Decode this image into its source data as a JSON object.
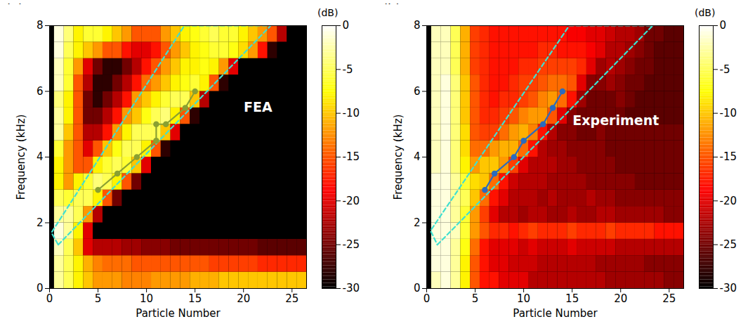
{
  "chart_data": [
    {
      "type": "heatmap",
      "panel": "(a)",
      "x_label": "Particle Number",
      "y_label": "Frequency (kHz)",
      "xlim": [
        0,
        26.5
      ],
      "xticks": [
        0,
        5,
        10,
        15,
        20,
        25
      ],
      "ylim": [
        0,
        8
      ],
      "yticks": [
        0,
        2,
        4,
        6,
        8
      ],
      "annotations": [
        {
          "text": "FEA",
          "x": 21.5,
          "y": 5.5
        }
      ],
      "particle_numbers": [
        1,
        2,
        3,
        4,
        5,
        6,
        7,
        8,
        9,
        10,
        11,
        12,
        13,
        14,
        15,
        16,
        17,
        18,
        19,
        20,
        21,
        22,
        23,
        24,
        25,
        26
      ],
      "frequency_bins": [
        0,
        0.5,
        1,
        1.5,
        2,
        2.5,
        3,
        3.5,
        4,
        4.5,
        5,
        5.5,
        6,
        6.5,
        7,
        7.5,
        8
      ],
      "cells": [
        [
          -3,
          -5,
          -8,
          -10,
          -12,
          -12,
          -12,
          -13,
          -13,
          -13,
          -12,
          -12,
          -12,
          -12,
          -11,
          -11,
          -11,
          -10,
          -10,
          -10,
          -10,
          -10,
          -10,
          -10,
          -10,
          -10
        ],
        [
          -3,
          -5,
          -8,
          -11,
          -13,
          -14,
          -14,
          -14,
          -15,
          -15,
          -15,
          -15,
          -15,
          -15,
          -15,
          -15,
          -16,
          -16,
          -16,
          -16,
          -16,
          -17,
          -17,
          -17,
          -17,
          -17
        ],
        [
          -2,
          -5,
          -10,
          -20,
          -22,
          -22,
          -22,
          -23,
          -23,
          -24,
          -24,
          -24,
          -25,
          -25,
          -25,
          -25,
          -25,
          -25,
          -25,
          -25,
          -25,
          -26,
          -26,
          -26,
          -26,
          -26
        ],
        [
          -1,
          -3,
          -8,
          -20,
          -30,
          -30,
          -30,
          -30,
          -30,
          -30,
          -30,
          -30,
          -30,
          -30,
          -30,
          -30,
          -30,
          -30,
          -30,
          -30,
          -30,
          -30,
          -30,
          -30,
          -30,
          -30
        ],
        [
          -3,
          -3,
          -5,
          -12,
          -22,
          -30,
          -30,
          -30,
          -30,
          -30,
          -30,
          -30,
          -30,
          -30,
          -30,
          -30,
          -30,
          -30,
          -30,
          -30,
          -30,
          -30,
          -30,
          -30,
          -30,
          -30
        ],
        [
          -5,
          -6,
          -5,
          -5,
          -8,
          -15,
          -25,
          -30,
          -30,
          -30,
          -30,
          -30,
          -30,
          -30,
          -30,
          -30,
          -30,
          -30,
          -30,
          -30,
          -30,
          -30,
          -30,
          -30,
          -30,
          -30
        ],
        [
          -8,
          -12,
          -8,
          -6,
          -4,
          -5,
          -8,
          -15,
          -25,
          -30,
          -30,
          -30,
          -30,
          -30,
          -30,
          -30,
          -30,
          -30,
          -30,
          -30,
          -30,
          -30,
          -30,
          -30,
          -30,
          -30
        ],
        [
          -8,
          -12,
          -15,
          -15,
          -8,
          -6,
          -5,
          -6,
          -10,
          -20,
          -30,
          -30,
          -30,
          -30,
          -30,
          -30,
          -30,
          -30,
          -30,
          -30,
          -30,
          -30,
          -30,
          -30,
          -30,
          -30
        ],
        [
          -6,
          -12,
          -15,
          -20,
          -15,
          -10,
          -7,
          -5,
          -5,
          -8,
          -15,
          -28,
          -30,
          -30,
          -30,
          -30,
          -30,
          -30,
          -30,
          -30,
          -30,
          -30,
          -30,
          -30,
          -30,
          -30
        ],
        [
          -3,
          -10,
          -15,
          -22,
          -22,
          -18,
          -12,
          -8,
          -5,
          -5,
          -5,
          -10,
          -20,
          -30,
          -30,
          -30,
          -30,
          -30,
          -30,
          -30,
          -30,
          -30,
          -30,
          -30,
          -30,
          -30
        ],
        [
          -3,
          -8,
          -15,
          -25,
          -25,
          -22,
          -18,
          -12,
          -10,
          -7,
          -5,
          -4,
          -8,
          -15,
          -28,
          -30,
          -30,
          -30,
          -30,
          -30,
          -30,
          -30,
          -30,
          -30,
          -30,
          -30
        ],
        [
          -4,
          -8,
          -15,
          -25,
          -28,
          -25,
          -22,
          -18,
          -12,
          -10,
          -8,
          -6,
          -5,
          -5,
          -10,
          -22,
          -30,
          -30,
          -30,
          -30,
          -30,
          -30,
          -30,
          -30,
          -30,
          -30
        ],
        [
          -2,
          -6,
          -15,
          -22,
          -28,
          -28,
          -25,
          -22,
          -18,
          -14,
          -12,
          -10,
          -8,
          -7,
          -6,
          -8,
          -15,
          -28,
          -30,
          -30,
          -30,
          -30,
          -30,
          -30,
          -30,
          -30
        ],
        [
          -2,
          -6,
          -12,
          -20,
          -25,
          -28,
          -28,
          -25,
          -22,
          -18,
          -15,
          -12,
          -10,
          -8,
          -8,
          -7,
          -8,
          -12,
          -20,
          -30,
          -30,
          -30,
          -30,
          -30,
          -30,
          -30
        ],
        [
          -1,
          -5,
          -8,
          -10,
          -12,
          -15,
          -15,
          -18,
          -20,
          -20,
          -18,
          -15,
          -12,
          -10,
          -8,
          -7,
          -6,
          -6,
          -7,
          -9,
          -12,
          -18,
          -28,
          -30,
          -30,
          -30
        ],
        [
          -1,
          -4,
          -8,
          -6,
          -6,
          -8,
          -10,
          -12,
          -15,
          -15,
          -15,
          -12,
          -10,
          -8,
          -7,
          -6,
          -5,
          -6,
          -6,
          -8,
          -10,
          -12,
          -15,
          -22,
          -30,
          -30
        ]
      ],
      "colorbar": {
        "label": "(dB)",
        "range": [
          -30,
          0
        ],
        "ticks": [
          0,
          -5,
          -10,
          -15,
          -20,
          -25,
          -30
        ]
      },
      "series": [
        {
          "color": "#40e0d0",
          "line_style": "dashed",
          "x": [
            0.9,
            22.8,
            13.9,
            0.2,
            0.9
          ],
          "y": [
            1.33,
            8,
            8,
            1.7,
            1.33
          ]
        },
        {
          "color": "#8aa032",
          "marker": "circle",
          "line_style": "solid",
          "x": [
            5,
            7,
            9,
            11,
            11,
            12,
            14,
            15
          ],
          "y": [
            3,
            3.5,
            4,
            4.5,
            5,
            5,
            5.5,
            6
          ]
        }
      ]
    },
    {
      "type": "heatmap",
      "panel": "(b)",
      "x_label": "Particle Number",
      "y_label": "Frequency (kHz)",
      "xlim": [
        0,
        26.5
      ],
      "xticks": [
        0,
        5,
        10,
        15,
        20,
        25
      ],
      "ylim": [
        0,
        8
      ],
      "yticks": [
        0,
        2,
        4,
        6,
        8
      ],
      "annotations": [
        {
          "text": "Experiment",
          "x": 19.5,
          "y": 5.1
        }
      ],
      "particle_numbers": [
        1,
        2,
        3,
        4,
        5,
        6,
        7,
        8,
        9,
        10,
        11,
        12,
        13,
        14,
        15,
        16,
        17,
        18,
        19,
        20,
        21,
        22,
        23,
        24,
        25,
        26
      ],
      "frequency_bins": [
        0,
        0.5,
        1,
        1.5,
        2,
        2.5,
        3,
        3.5,
        4,
        4.5,
        5,
        5.5,
        6,
        6.5,
        7,
        7.5,
        8
      ],
      "cells": [
        [
          -2,
          -1,
          -3,
          -8,
          -15,
          -18,
          -18,
          -20,
          -20,
          -20,
          -22,
          -22,
          -22,
          -22,
          -22,
          -22,
          -22,
          -22,
          -23,
          -23,
          -23,
          -23,
          -23,
          -23,
          -24,
          -24
        ],
        [
          -1,
          -1,
          -3,
          -8,
          -15,
          -18,
          -20,
          -20,
          -21,
          -21,
          -21,
          -22,
          -22,
          -22,
          -22,
          -22,
          -22,
          -23,
          -23,
          -23,
          -23,
          -23,
          -24,
          -24,
          -24,
          -24
        ],
        [
          -1,
          -1,
          -3,
          -7,
          -14,
          -18,
          -20,
          -20,
          -20,
          -21,
          -20,
          -21,
          -21,
          -21,
          -20,
          -21,
          -21,
          -21,
          -21,
          -22,
          -22,
          -22,
          -22,
          -22,
          -22,
          -22
        ],
        [
          -1,
          -1,
          -2,
          -6,
          -12,
          -15,
          -17,
          -17,
          -18,
          -17,
          -16,
          -17,
          -17,
          -17,
          -16,
          -17,
          -17,
          -17,
          -16,
          -17,
          -17,
          -17,
          -17,
          -18,
          -18,
          -18
        ],
        [
          -1,
          -1,
          -3,
          -6,
          -12,
          -16,
          -20,
          -22,
          -22,
          -23,
          -22,
          -22,
          -23,
          -23,
          -22,
          -23,
          -23,
          -22,
          -22,
          -23,
          -23,
          -23,
          -23,
          -23,
          -24,
          -24
        ],
        [
          -1,
          -1,
          -3,
          -5,
          -10,
          -14,
          -18,
          -20,
          -22,
          -22,
          -22,
          -23,
          -22,
          -23,
          -23,
          -23,
          -22,
          -23,
          -23,
          -24,
          -24,
          -24,
          -24,
          -24,
          -24,
          -24
        ],
        [
          -1,
          -1,
          -3,
          -6,
          -9,
          -10,
          -14,
          -18,
          -21,
          -22,
          -22,
          -22,
          -23,
          -23,
          -23,
          -23,
          -24,
          -24,
          -24,
          -24,
          -24,
          -25,
          -25,
          -25,
          -25,
          -25
        ],
        [
          -2,
          -1,
          -4,
          -8,
          -12,
          -10,
          -10,
          -12,
          -16,
          -20,
          -22,
          -22,
          -22,
          -23,
          -23,
          -24,
          -24,
          -24,
          -24,
          -25,
          -25,
          -25,
          -25,
          -25,
          -25,
          -25
        ],
        [
          -2,
          -1,
          -4,
          -9,
          -14,
          -14,
          -12,
          -11,
          -11,
          -14,
          -18,
          -22,
          -23,
          -23,
          -24,
          -24,
          -24,
          -24,
          -25,
          -25,
          -25,
          -25,
          -25,
          -25,
          -25,
          -25
        ],
        [
          -2,
          -1,
          -4,
          -9,
          -15,
          -16,
          -16,
          -14,
          -12,
          -11,
          -13,
          -18,
          -22,
          -24,
          -24,
          -25,
          -25,
          -24,
          -25,
          -25,
          -25,
          -25,
          -25,
          -25,
          -25,
          -25
        ],
        [
          -2,
          -1,
          -4,
          -10,
          -15,
          -17,
          -17,
          -16,
          -15,
          -13,
          -12,
          -12,
          -15,
          -20,
          -24,
          -25,
          -25,
          -25,
          -25,
          -25,
          -26,
          -26,
          -26,
          -26,
          -26,
          -26
        ],
        [
          -2,
          -1,
          -4,
          -10,
          -15,
          -17,
          -18,
          -17,
          -17,
          -16,
          -15,
          -13,
          -12,
          -14,
          -18,
          -23,
          -25,
          -25,
          -25,
          -24,
          -25,
          -26,
          -26,
          -26,
          -26,
          -26
        ],
        [
          -2,
          -1,
          -4,
          -10,
          -15,
          -17,
          -18,
          -18,
          -17,
          -16,
          -16,
          -15,
          -14,
          -14,
          -15,
          -20,
          -24,
          -24,
          -23,
          -24,
          -25,
          -25,
          -26,
          -26,
          -26,
          -26
        ],
        [
          -2,
          -2,
          -5,
          -11,
          -16,
          -17,
          -18,
          -18,
          -18,
          -17,
          -17,
          -16,
          -16,
          -16,
          -16,
          -17,
          -20,
          -23,
          -22,
          -23,
          -24,
          -25,
          -25,
          -26,
          -26,
          -26
        ],
        [
          -2,
          -2,
          -5,
          -11,
          -16,
          -17,
          -18,
          -18,
          -18,
          -18,
          -18,
          -17,
          -17,
          -18,
          -18,
          -18,
          -19,
          -20,
          -22,
          -22,
          -23,
          -24,
          -25,
          -26,
          -26,
          -26
        ],
        [
          -2,
          -2,
          -5,
          -11,
          -16,
          -17,
          -18,
          -18,
          -18,
          -18,
          -18,
          -18,
          -18,
          -18,
          -19,
          -19,
          -20,
          -20,
          -21,
          -22,
          -22,
          -23,
          -25,
          -25,
          -26,
          -26
        ]
      ],
      "colorbar": {
        "label": "(dB)",
        "range": [
          -30,
          0
        ],
        "ticks": [
          0,
          -5,
          -10,
          -15,
          -20,
          -25,
          -30
        ]
      },
      "series": [
        {
          "color": "#40e0d0",
          "line_style": "dashed",
          "x": [
            1.1,
            23.3,
            14.7,
            0.4,
            1.1
          ],
          "y": [
            1.33,
            8,
            8,
            1.76,
            1.33
          ]
        },
        {
          "color": "#2a6bbf",
          "marker": "circle",
          "line_style": "solid",
          "x": [
            6,
            7,
            9,
            10,
            12,
            13,
            14
          ],
          "y": [
            3,
            3.5,
            4,
            4.5,
            5,
            5.5,
            6
          ]
        }
      ]
    }
  ]
}
